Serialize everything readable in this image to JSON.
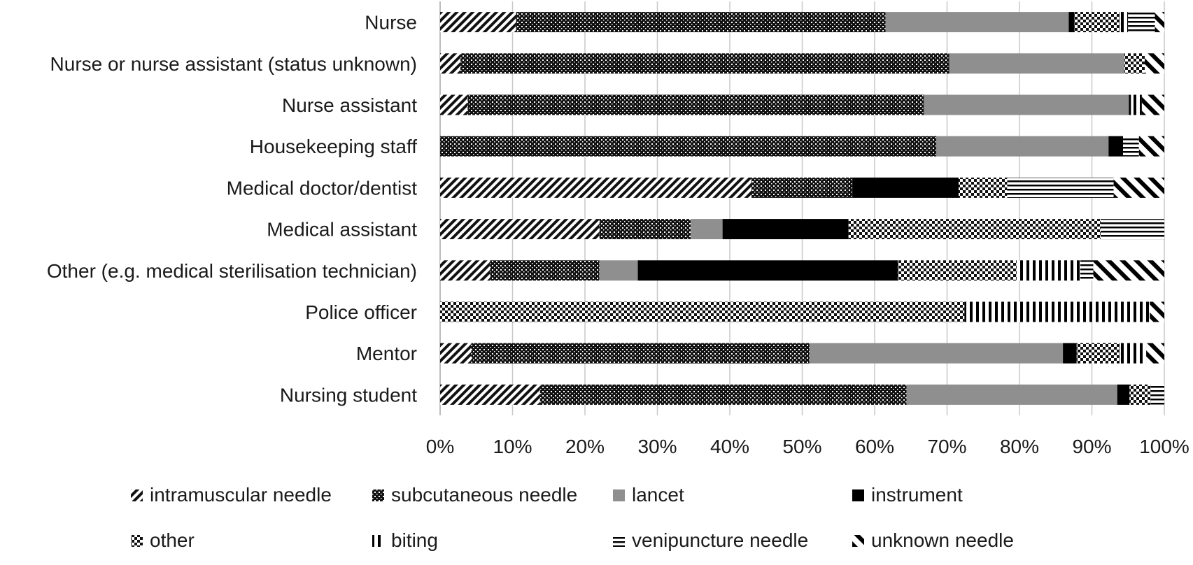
{
  "chart_data": {
    "type": "bar",
    "orientation": "horizontal",
    "stacked": "percent",
    "title": "",
    "xlabel": "",
    "ylabel": "",
    "xlim": [
      0,
      100
    ],
    "xticks": [
      "0%",
      "10%",
      "20%",
      "30%",
      "40%",
      "50%",
      "60%",
      "70%",
      "80%",
      "90%",
      "100%"
    ],
    "grid": "vertical",
    "legend_position": "bottom",
    "categories": [
      "Nurse",
      "Nurse or nurse assistant (status unknown)",
      "Nurse assistant",
      "Housekeeping staff",
      "Medical doctor/dentist",
      "Medical assistant",
      "Other (e.g. medical sterilisation technician)",
      "Police officer",
      "Mentor",
      "Nursing student"
    ],
    "series": [
      {
        "name": "intramuscular needle",
        "pattern": "diagonal-hatch",
        "values": [
          10.5,
          2.8,
          3.8,
          0,
          43.0,
          22.0,
          6.9,
          0,
          4.3,
          13.8
        ]
      },
      {
        "name": "subcutaneous needle",
        "pattern": "dark-dots",
        "values": [
          51.0,
          67.5,
          63.0,
          68.5,
          14.0,
          12.6,
          15.1,
          0,
          46.7,
          50.6
        ]
      },
      {
        "name": "lancet",
        "pattern": "gray",
        "values": [
          25.3,
          24.2,
          28.3,
          23.8,
          0,
          4.4,
          5.3,
          0,
          35.0,
          29.1
        ]
      },
      {
        "name": "instrument",
        "pattern": "solid-black",
        "values": [
          0.8,
          0,
          0.3,
          2.0,
          14.6,
          17.4,
          35.9,
          0,
          1.9,
          1.7
        ]
      },
      {
        "name": "other",
        "pattern": "checker",
        "values": [
          6.3,
          2.8,
          0,
          0,
          6.7,
          34.8,
          16.4,
          72.4,
          6.0,
          2.9
        ]
      },
      {
        "name": "biting",
        "pattern": "vertical-lines",
        "values": [
          1.1,
          0,
          1.5,
          0,
          0,
          0,
          8.8,
          25.6,
          3.6,
          0
        ]
      },
      {
        "name": "venipuncture needle",
        "pattern": "horizontal-lines",
        "values": [
          3.7,
          0,
          0,
          2.2,
          14.7,
          8.8,
          1.8,
          0,
          0,
          1.9
        ]
      },
      {
        "name": "unknown needle",
        "pattern": "reverse-hatch",
        "values": [
          1.3,
          2.7,
          3.1,
          3.5,
          7.0,
          0,
          9.8,
          2.0,
          2.5,
          0
        ]
      }
    ]
  }
}
